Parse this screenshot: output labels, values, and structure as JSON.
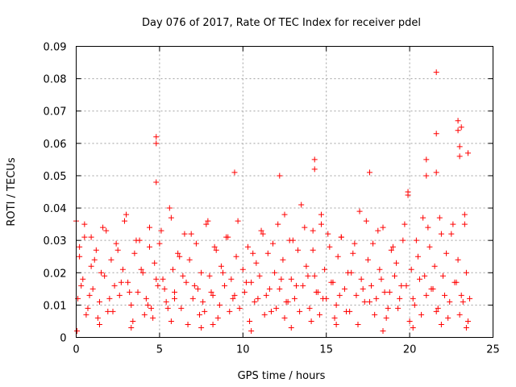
{
  "chart_data": {
    "type": "scatter",
    "title": "Day 076 of 2017, Rate Of TEC Index for receiver pdel",
    "xlabel": "GPS time / hours",
    "ylabel": "ROTI / TECUs",
    "xlim": [
      0,
      25
    ],
    "ylim": [
      0,
      0.09
    ],
    "xticks": [
      "0",
      "5",
      "10",
      "15",
      "20",
      "25"
    ],
    "yticks": [
      "0",
      "0.01",
      "0.02",
      "0.03",
      "0.04",
      "0.05",
      "0.06",
      "0.07",
      "0.08",
      "0.09"
    ],
    "grid": true,
    "marker": "+",
    "color": "#ff0000",
    "series": [
      {
        "x": [
          0.0,
          0.1,
          0.2,
          0.4,
          0.5,
          0.7,
          0.9,
          1.0,
          1.2,
          1.4,
          1.6,
          1.7,
          1.9,
          2.1,
          2.3,
          2.4,
          2.6,
          2.8,
          3.0,
          3.1,
          3.3,
          3.5,
          3.7,
          3.8,
          4.0,
          4.2,
          4.4,
          4.5,
          4.7,
          4.9,
          5.1,
          5.2,
          5.4,
          5.6,
          5.8,
          5.9,
          6.1,
          6.3,
          6.5,
          6.6,
          6.8,
          7.0,
          7.2,
          7.3,
          7.5,
          7.7,
          7.9,
          8.0,
          8.2,
          8.4,
          8.6,
          8.7,
          8.9,
          9.1,
          9.3,
          9.4,
          9.6,
          9.8,
          10.0,
          10.1,
          10.3,
          10.5,
          10.7,
          10.8,
          11.0,
          11.2,
          11.4,
          11.5,
          11.7,
          11.9,
          12.1,
          12.2,
          12.4,
          12.6,
          12.8,
          12.9,
          13.1,
          13.3,
          13.5,
          13.6,
          13.8,
          14.0,
          14.2,
          14.3,
          14.5,
          14.7,
          14.9,
          15.0,
          15.2,
          15.4,
          15.6,
          15.7,
          15.9,
          16.1,
          16.3,
          16.4,
          16.6,
          16.8,
          17.0,
          17.1,
          17.3,
          17.5,
          17.7,
          17.8,
          18.0,
          18.2,
          18.4,
          18.5,
          18.7,
          18.9,
          19.1,
          19.2,
          19.4,
          19.6,
          19.8,
          19.9,
          20.1,
          20.3,
          20.5,
          20.6,
          20.8,
          21.0,
          21.2,
          21.3,
          21.5,
          21.7,
          21.9,
          22.0,
          22.2,
          22.4,
          22.6,
          22.7,
          22.9,
          23.1,
          23.3,
          23.4,
          23.6,
          0.3,
          0.8,
          1.5,
          2.0,
          2.7,
          3.2,
          3.9,
          4.3,
          4.8,
          5.3,
          5.9,
          6.4,
          7.1,
          7.6,
          8.1,
          8.8,
          9.5,
          10.2,
          10.9,
          11.6,
          12.3,
          12.7,
          13.2,
          13.9,
          14.4,
          14.8,
          15.3,
          15.8,
          16.5,
          17.2,
          17.6,
          18.3,
          18.8,
          19.5,
          20.2,
          20.9,
          21.4,
          22.1,
          22.8,
          23.2,
          0.6,
          1.3,
          2.2,
          3.4,
          4.1,
          4.6,
          5.5,
          6.7,
          7.4,
          8.5,
          9.2,
          10.4,
          11.3,
          12.0,
          12.5,
          13.4,
          14.1,
          14.6,
          15.5,
          16.2,
          16.9,
          17.9,
          18.6,
          19.3,
          20.0,
          20.7,
          21.6,
          22.3,
          23.0,
          23.5,
          0.2,
          0.5,
          0.9,
          1.1,
          1.8,
          2.5,
          2.9,
          3.6,
          4.4,
          5.0,
          5.7,
          6.2,
          6.9,
          7.8,
          8.3,
          9.0,
          9.7,
          10.6,
          11.1,
          11.8,
          12.5,
          13.0,
          13.7,
          14.2,
          14.7,
          15.1,
          15.9,
          16.7,
          17.4,
          18.1,
          19.0,
          19.7,
          20.4,
          21.1,
          21.8,
          22.5,
          23.3,
          4.8,
          4.8,
          4.8,
          9.5,
          12.2,
          14.3,
          14.3,
          17.6,
          19.9,
          21.0,
          21.0,
          21.6,
          21.6,
          21.6,
          22.9,
          22.9,
          23.0,
          23.0,
          23.1,
          23.5,
          0.05,
          1.4,
          3.3,
          5.7,
          7.5,
          8.2,
          10.5,
          12.9,
          15.6,
          18.4,
          20.2,
          21.9,
          23.4
        ],
        "y": [
          0.036,
          0.012,
          0.025,
          0.018,
          0.031,
          0.009,
          0.022,
          0.015,
          0.027,
          0.011,
          0.034,
          0.019,
          0.008,
          0.024,
          0.016,
          0.029,
          0.013,
          0.021,
          0.038,
          0.017,
          0.01,
          0.026,
          0.014,
          0.03,
          0.02,
          0.012,
          0.028,
          0.009,
          0.023,
          0.016,
          0.033,
          0.018,
          0.011,
          0.04,
          0.021,
          0.014,
          0.026,
          0.009,
          0.032,
          0.017,
          0.024,
          0.012,
          0.029,
          0.015,
          0.02,
          0.008,
          0.036,
          0.019,
          0.013,
          0.027,
          0.01,
          0.022,
          0.016,
          0.031,
          0.018,
          0.012,
          0.025,
          0.009,
          0.021,
          0.014,
          0.028,
          0.017,
          0.011,
          0.023,
          0.019,
          0.032,
          0.013,
          0.026,
          0.008,
          0.02,
          0.035,
          0.015,
          0.024,
          0.011,
          0.03,
          0.018,
          0.012,
          0.027,
          0.041,
          0.016,
          0.022,
          0.009,
          0.033,
          0.019,
          0.014,
          0.038,
          0.021,
          0.012,
          0.028,
          0.017,
          0.01,
          0.025,
          0.031,
          0.015,
          0.02,
          0.008,
          0.026,
          0.013,
          0.039,
          0.018,
          0.011,
          0.024,
          0.016,
          0.029,
          0.012,
          0.021,
          0.034,
          0.014,
          0.009,
          0.027,
          0.019,
          0.023,
          0.012,
          0.03,
          0.016,
          0.044,
          0.021,
          0.01,
          0.025,
          0.018,
          0.037,
          0.013,
          0.028,
          0.015,
          0.022,
          0.009,
          0.032,
          0.019,
          0.026,
          0.011,
          0.035,
          0.017,
          0.024,
          0.013,
          0.038,
          0.02,
          0.012,
          0.016,
          0.013,
          0.02,
          0.012,
          0.017,
          0.014,
          0.021,
          0.01,
          0.018,
          0.015,
          0.012,
          0.019,
          0.016,
          0.011,
          0.014,
          0.02,
          0.013,
          0.017,
          0.012,
          0.015,
          0.018,
          0.011,
          0.016,
          0.019,
          0.014,
          0.012,
          0.017,
          0.013,
          0.02,
          0.015,
          0.011,
          0.018,
          0.014,
          0.016,
          0.012,
          0.019,
          0.015,
          0.013,
          0.017,
          0.011,
          0.007,
          0.006,
          0.008,
          0.005,
          0.007,
          0.006,
          0.009,
          0.004,
          0.007,
          0.006,
          0.008,
          0.005,
          0.007,
          0.009,
          0.006,
          0.008,
          0.005,
          0.007,
          0.006,
          0.008,
          0.004,
          0.007,
          0.006,
          0.009,
          0.005,
          0.007,
          0.008,
          0.006,
          0.007,
          0.005,
          0.028,
          0.035,
          0.031,
          0.024,
          0.033,
          0.027,
          0.036,
          0.03,
          0.034,
          0.029,
          0.037,
          0.025,
          0.032,
          0.035,
          0.028,
          0.031,
          0.036,
          0.026,
          0.033,
          0.029,
          0.038,
          0.03,
          0.034,
          0.027,
          0.035,
          0.032,
          0.031,
          0.029,
          0.036,
          0.033,
          0.028,
          0.035,
          0.03,
          0.034,
          0.037,
          0.032,
          0.035,
          0.062,
          0.06,
          0.048,
          0.051,
          0.05,
          0.055,
          0.052,
          0.051,
          0.045,
          0.055,
          0.05,
          0.082,
          0.063,
          0.051,
          0.067,
          0.064,
          0.059,
          0.056,
          0.065,
          0.057,
          0.002,
          0.004,
          0.003,
          0.005,
          0.003,
          0.004,
          0.002,
          0.003,
          0.004,
          0.002,
          0.003,
          0.004,
          0.003
        ]
      }
    ]
  }
}
